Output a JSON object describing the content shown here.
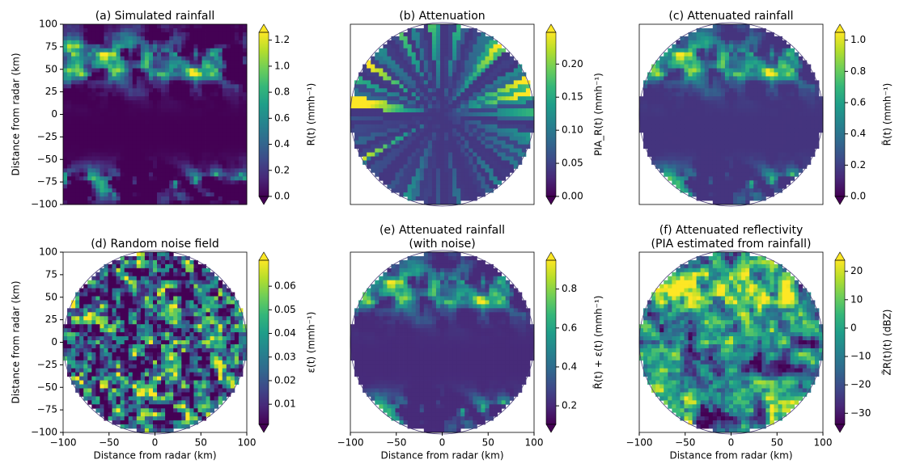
{
  "chart_data": [
    {
      "type": "heatmap",
      "title": [
        "(a) Simulated rainfall"
      ],
      "ylabel": "Distance from radar (km)",
      "xlim": [
        -100,
        100
      ],
      "ylim": [
        -100,
        100
      ],
      "yticks": [
        {
          "value": -100,
          "label": "−100"
        },
        {
          "value": -75,
          "label": "−75"
        },
        {
          "value": -50,
          "label": "−50"
        },
        {
          "value": -25,
          "label": "−25"
        },
        0,
        25,
        50,
        75,
        100
      ],
      "colorbar": {
        "label": "R(t) (mmh⁻¹)",
        "lim": [
          0,
          1.26
        ],
        "ticks": [
          {
            "value": 0,
            "label": "0.0"
          },
          0.2,
          0.4,
          0.6,
          0.8,
          {
            "value": 1,
            "label": "1.0"
          },
          1.2
        ]
      }
    },
    {
      "type": "heatmap",
      "title": [
        "(b) Attenuation"
      ],
      "xlim": [
        -100,
        100
      ],
      "ylim": [
        -100,
        100
      ],
      "colorbar": {
        "label": "PIA_R(t) (mmh⁻¹)",
        "lim": [
          0,
          0.248
        ],
        "ticks": [
          {
            "value": 0,
            "label": "0.00"
          },
          {
            "value": 0.05,
            "label": "0.05"
          },
          {
            "value": 0.1,
            "label": "0.10"
          },
          {
            "value": 0.15,
            "label": "0.15"
          },
          {
            "value": 0.2,
            "label": "0.20"
          }
        ]
      }
    },
    {
      "type": "heatmap",
      "title": [
        "(c) Attenuated rainfall"
      ],
      "xlim": [
        -100,
        100
      ],
      "ylim": [
        -100,
        100
      ],
      "colorbar": {
        "label": "R̃(t) (mmh⁻¹)",
        "lim": [
          0,
          1.05
        ],
        "ticks": [
          {
            "value": 0,
            "label": "0.0"
          },
          0.2,
          0.4,
          0.6,
          0.8,
          {
            "value": 1,
            "label": "1.0"
          }
        ]
      }
    },
    {
      "type": "heatmap",
      "title": [
        "(d) Random noise field"
      ],
      "xlabel": "Distance from radar (km)",
      "ylabel": "Distance from radar (km)",
      "xlim": [
        -100,
        100
      ],
      "ylim": [
        -100,
        100
      ],
      "xticks": [
        {
          "value": -100,
          "label": "−100"
        },
        {
          "value": -50,
          "label": "−50"
        },
        0,
        50,
        100
      ],
      "yticks": [
        {
          "value": -100,
          "label": "−100"
        },
        {
          "value": -75,
          "label": "−75"
        },
        {
          "value": -50,
          "label": "−50"
        },
        {
          "value": -25,
          "label": "−25"
        },
        0,
        25,
        50,
        75,
        100
      ],
      "colorbar": {
        "label": "ε(t) (mmh⁻¹)",
        "lim": [
          0.0015,
          0.071
        ],
        "ticks": [
          0.01,
          0.02,
          0.03,
          0.04,
          0.05,
          0.06
        ]
      }
    },
    {
      "type": "heatmap",
      "title": [
        "(e) Attenuated rainfall",
        "(with noise)"
      ],
      "xlabel": "Distance from radar (km)",
      "xlim": [
        -100,
        100
      ],
      "ylim": [
        -100,
        100
      ],
      "xticks": [
        {
          "value": -100,
          "label": "−100"
        },
        {
          "value": -50,
          "label": "−50"
        },
        0,
        50,
        100
      ],
      "colorbar": {
        "label": "R̃(t) + ε(t) (mmh⁻¹)",
        "lim": [
          0.105,
          0.948
        ],
        "ticks": [
          0.2,
          0.4,
          0.6,
          0.8
        ]
      }
    },
    {
      "type": "heatmap",
      "title": [
        "(f) Attenuated reflectivity",
        "(PIA estimated from rainfall)"
      ],
      "xlabel": "Distance from radar (km)",
      "xlim": [
        -100,
        100
      ],
      "ylim": [
        -100,
        100
      ],
      "xticks": [
        {
          "value": -100,
          "label": "−100"
        },
        {
          "value": -50,
          "label": "−50"
        },
        0,
        50,
        100
      ],
      "colorbar": {
        "label": "Z̃R(t)(t) (dBZ)",
        "lim": [
          -33.9,
          23.9
        ],
        "ticks": [
          {
            "value": -30,
            "label": "−30"
          },
          {
            "value": -20,
            "label": "−20"
          },
          {
            "value": -10,
            "label": "−10"
          },
          0,
          10,
          20
        ]
      }
    }
  ]
}
